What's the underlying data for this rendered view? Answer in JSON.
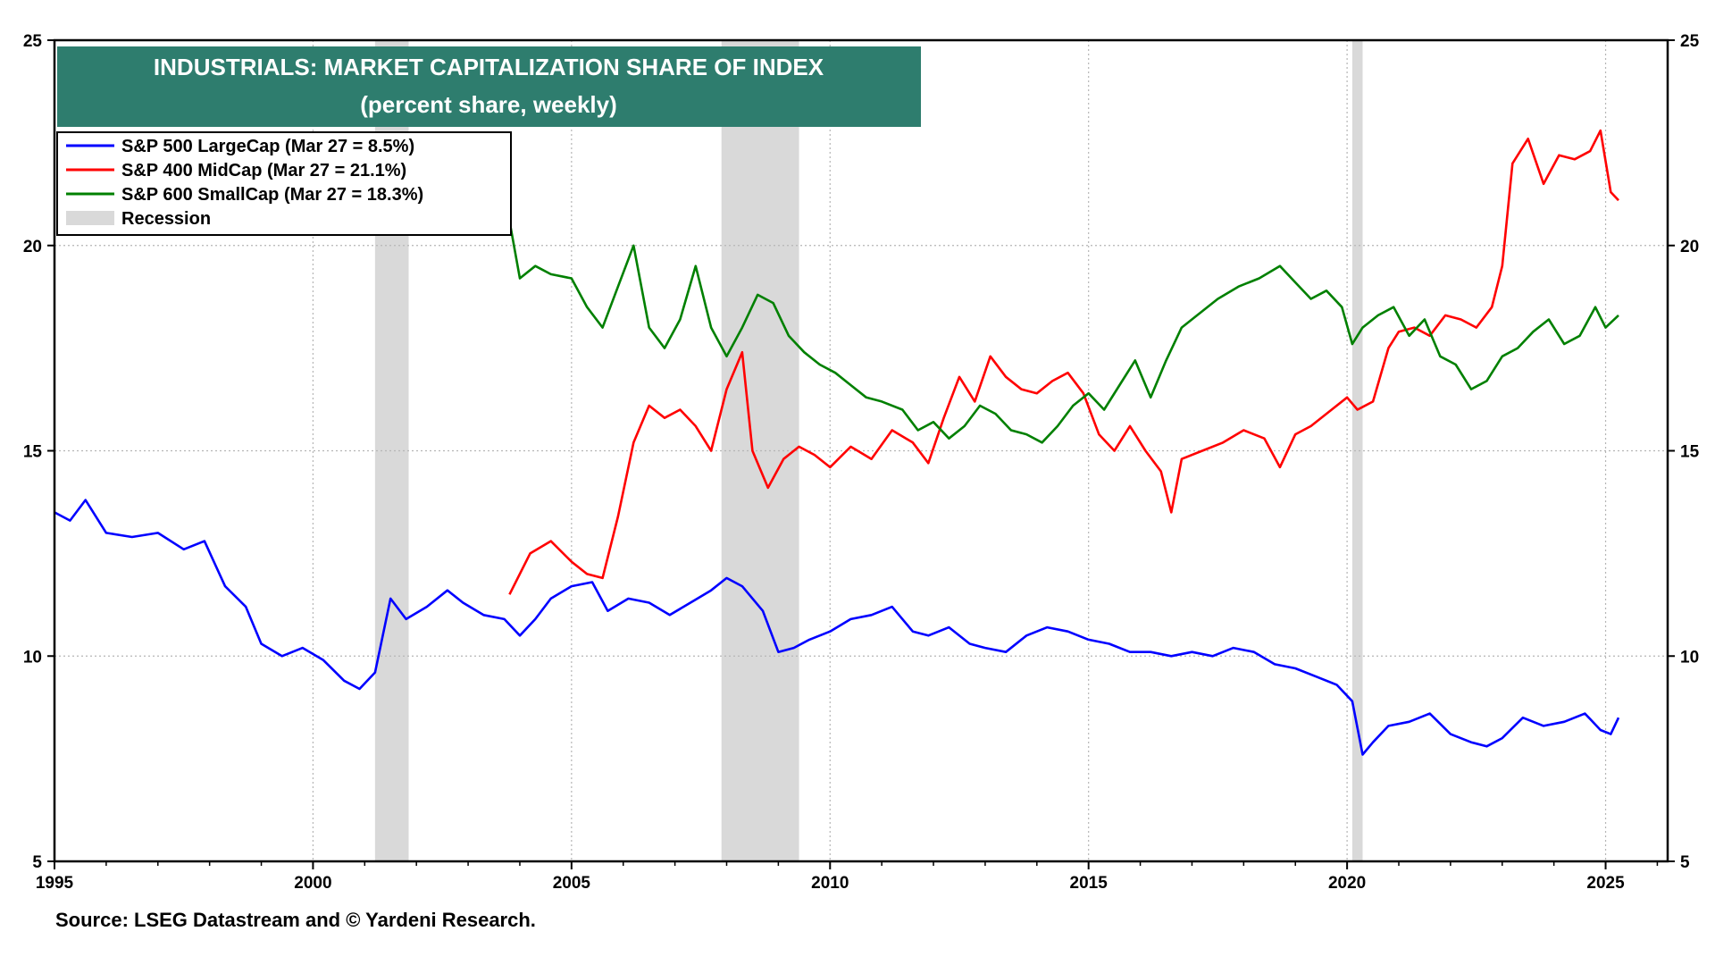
{
  "chart_data": {
    "type": "line",
    "title": "INDUSTRIALS: MARKET CAPITALIZATION SHARE OF INDEX",
    "subtitle": "(percent share, weekly)",
    "xlabel": "",
    "ylabel": "",
    "xlim": [
      1995,
      2026.2
    ],
    "ylim": [
      5,
      25
    ],
    "x_ticks": [
      1995,
      2000,
      2005,
      2010,
      2015,
      2020,
      2025
    ],
    "y_ticks": [
      5,
      10,
      15,
      20,
      25
    ],
    "grid": true,
    "legend_position": "top-left",
    "colors": {
      "large": "#0000ff",
      "mid": "#ff0000",
      "small": "#008000",
      "recession": "#d9d9d9",
      "title_bg": "#2e7d6e"
    },
    "recessions": [
      {
        "start": 2001.2,
        "end": 2001.85
      },
      {
        "start": 2007.9,
        "end": 2009.4
      },
      {
        "start": 2020.1,
        "end": 2020.3
      }
    ],
    "series": [
      {
        "key": "large",
        "name": "S&P 500 LargeCap (Mar 27 = 8.5%)",
        "x": [
          1995.0,
          1995.3,
          1995.6,
          1996.0,
          1996.5,
          1997.0,
          1997.5,
          1997.9,
          1998.3,
          1998.7,
          1999.0,
          1999.4,
          1999.8,
          2000.2,
          2000.6,
          2000.9,
          2001.2,
          2001.5,
          2001.8,
          2002.2,
          2002.6,
          2002.9,
          2003.3,
          2003.7,
          2004.0,
          2004.3,
          2004.6,
          2005.0,
          2005.4,
          2005.7,
          2006.1,
          2006.5,
          2006.9,
          2007.3,
          2007.7,
          2008.0,
          2008.3,
          2008.7,
          2009.0,
          2009.3,
          2009.6,
          2010.0,
          2010.4,
          2010.8,
          2011.2,
          2011.6,
          2011.9,
          2012.3,
          2012.7,
          2013.0,
          2013.4,
          2013.8,
          2014.2,
          2014.6,
          2015.0,
          2015.4,
          2015.8,
          2016.2,
          2016.6,
          2017.0,
          2017.4,
          2017.8,
          2018.2,
          2018.6,
          2019.0,
          2019.4,
          2019.8,
          2020.1,
          2020.3,
          2020.5,
          2020.8,
          2021.2,
          2021.6,
          2022.0,
          2022.4,
          2022.7,
          2023.0,
          2023.4,
          2023.8,
          2024.2,
          2024.6,
          2024.9,
          2025.1,
          2025.25
        ],
        "values": [
          13.5,
          13.3,
          13.8,
          13.0,
          12.9,
          13.0,
          12.6,
          12.8,
          11.7,
          11.2,
          10.3,
          10.0,
          10.2,
          9.9,
          9.4,
          9.2,
          9.6,
          11.4,
          10.9,
          11.2,
          11.6,
          11.3,
          11.0,
          10.9,
          10.5,
          10.9,
          11.4,
          11.7,
          11.8,
          11.1,
          11.4,
          11.3,
          11.0,
          11.3,
          11.6,
          11.9,
          11.7,
          11.1,
          10.1,
          10.2,
          10.4,
          10.6,
          10.9,
          11.0,
          11.2,
          10.6,
          10.5,
          10.7,
          10.3,
          10.2,
          10.1,
          10.5,
          10.7,
          10.6,
          10.4,
          10.3,
          10.1,
          10.1,
          10.0,
          10.1,
          10.0,
          10.2,
          10.1,
          9.8,
          9.7,
          9.5,
          9.3,
          8.9,
          7.6,
          7.9,
          8.3,
          8.4,
          8.6,
          8.1,
          7.9,
          7.8,
          8.0,
          8.5,
          8.3,
          8.4,
          8.6,
          8.2,
          8.1,
          8.5
        ]
      },
      {
        "key": "mid",
        "name": "S&P 400 MidCap (Mar 27 = 21.1%)",
        "x": [
          2003.8,
          2004.2,
          2004.6,
          2005.0,
          2005.3,
          2005.6,
          2005.9,
          2006.2,
          2006.5,
          2006.8,
          2007.1,
          2007.4,
          2007.7,
          2008.0,
          2008.3,
          2008.5,
          2008.8,
          2009.1,
          2009.4,
          2009.7,
          2010.0,
          2010.4,
          2010.8,
          2011.2,
          2011.6,
          2011.9,
          2012.2,
          2012.5,
          2012.8,
          2013.1,
          2013.4,
          2013.7,
          2014.0,
          2014.3,
          2014.6,
          2014.9,
          2015.2,
          2015.5,
          2015.8,
          2016.1,
          2016.4,
          2016.6,
          2016.8,
          2017.2,
          2017.6,
          2018.0,
          2018.4,
          2018.7,
          2019.0,
          2019.3,
          2019.7,
          2020.0,
          2020.2,
          2020.5,
          2020.8,
          2021.0,
          2021.3,
          2021.6,
          2021.9,
          2022.2,
          2022.5,
          2022.8,
          2023.0,
          2023.2,
          2023.5,
          2023.8,
          2024.1,
          2024.4,
          2024.7,
          2024.9,
          2025.1,
          2025.25
        ],
        "values": [
          11.5,
          12.5,
          12.8,
          12.3,
          12.0,
          11.9,
          13.4,
          15.2,
          16.1,
          15.8,
          16.0,
          15.6,
          15.0,
          16.5,
          17.4,
          15.0,
          14.1,
          14.8,
          15.1,
          14.9,
          14.6,
          15.1,
          14.8,
          15.5,
          15.2,
          14.7,
          15.8,
          16.8,
          16.2,
          17.3,
          16.8,
          16.5,
          16.4,
          16.7,
          16.9,
          16.4,
          15.4,
          15.0,
          15.6,
          15.0,
          14.5,
          13.5,
          14.8,
          15.0,
          15.2,
          15.5,
          15.3,
          14.6,
          15.4,
          15.6,
          16.0,
          16.3,
          16.0,
          16.2,
          17.5,
          17.9,
          18.0,
          17.8,
          18.3,
          18.2,
          18.0,
          18.5,
          19.5,
          22.0,
          22.6,
          21.5,
          22.2,
          22.1,
          22.3,
          22.8,
          21.3,
          21.1
        ]
      },
      {
        "key": "small",
        "name": "S&P 600 SmallCap (Mar 27 = 18.3%)",
        "x": [
          2003.8,
          2004.0,
          2004.3,
          2004.6,
          2005.0,
          2005.3,
          2005.6,
          2005.9,
          2006.2,
          2006.5,
          2006.8,
          2007.1,
          2007.4,
          2007.7,
          2008.0,
          2008.3,
          2008.6,
          2008.9,
          2009.2,
          2009.5,
          2009.8,
          2010.1,
          2010.4,
          2010.7,
          2011.0,
          2011.4,
          2011.7,
          2012.0,
          2012.3,
          2012.6,
          2012.9,
          2013.2,
          2013.5,
          2013.8,
          2014.1,
          2014.4,
          2014.7,
          2015.0,
          2015.3,
          2015.6,
          2015.9,
          2016.2,
          2016.5,
          2016.8,
          2017.1,
          2017.5,
          2017.9,
          2018.3,
          2018.7,
          2019.0,
          2019.3,
          2019.6,
          2019.9,
          2020.1,
          2020.3,
          2020.6,
          2020.9,
          2021.2,
          2021.5,
          2021.8,
          2022.1,
          2022.4,
          2022.7,
          2023.0,
          2023.3,
          2023.6,
          2023.9,
          2024.2,
          2024.5,
          2024.8,
          2025.0,
          2025.25
        ],
        "values": [
          20.6,
          19.2,
          19.5,
          19.3,
          19.2,
          18.5,
          18.0,
          19.0,
          20.0,
          18.0,
          17.5,
          18.2,
          19.5,
          18.0,
          17.3,
          18.0,
          18.8,
          18.6,
          17.8,
          17.4,
          17.1,
          16.9,
          16.6,
          16.3,
          16.2,
          16.0,
          15.5,
          15.7,
          15.3,
          15.6,
          16.1,
          15.9,
          15.5,
          15.4,
          15.2,
          15.6,
          16.1,
          16.4,
          16.0,
          16.6,
          17.2,
          16.3,
          17.2,
          18.0,
          18.3,
          18.7,
          19.0,
          19.2,
          19.5,
          19.1,
          18.7,
          18.9,
          18.5,
          17.6,
          18.0,
          18.3,
          18.5,
          17.8,
          18.2,
          17.3,
          17.1,
          16.5,
          16.7,
          17.3,
          17.5,
          17.9,
          18.2,
          17.6,
          17.8,
          18.5,
          18.0,
          18.3
        ]
      }
    ],
    "legend_recession_label": "Recession",
    "source": "Source: LSEG Datastream and © Yardeni Research."
  }
}
